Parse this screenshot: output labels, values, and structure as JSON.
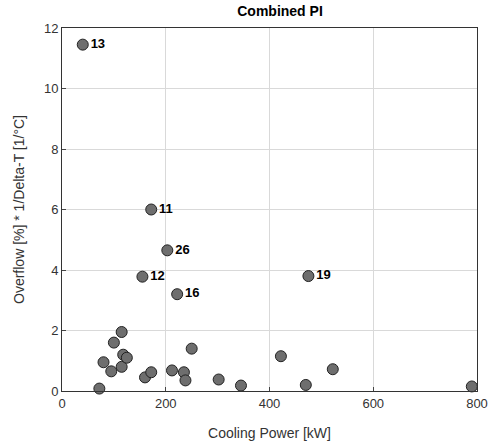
{
  "chart_data": {
    "type": "scatter",
    "title": "Combined PI",
    "x_label": "Cooling Power [kW]",
    "y_label": "Overflow [%] * 1/Delta-T [1/°C]",
    "x": [
      40,
      172,
      203,
      155,
      222,
      475,
      72,
      80,
      95,
      100,
      115,
      115,
      118,
      125,
      160,
      172,
      212,
      235,
      238,
      250,
      302,
      345,
      422,
      470,
      522,
      790
    ],
    "values": [
      11.45,
      6.0,
      4.65,
      3.78,
      3.2,
      3.8,
      0.08,
      0.95,
      0.65,
      1.6,
      1.95,
      0.8,
      1.2,
      1.1,
      0.45,
      0.62,
      0.68,
      0.62,
      0.35,
      1.4,
      0.38,
      0.18,
      1.15,
      0.2,
      0.72,
      0.15
    ],
    "point_labels": [
      "13",
      "11",
      "26",
      "12",
      "16",
      "19",
      null,
      null,
      null,
      null,
      null,
      null,
      null,
      null,
      null,
      null,
      null,
      null,
      null,
      null,
      null,
      null,
      null,
      null,
      null,
      null
    ],
    "color": "#6e6e6e",
    "marker": "circle",
    "xlim": [
      0,
      800
    ],
    "xticks": [
      0,
      200,
      400,
      600,
      800
    ],
    "ylim": [
      0,
      12
    ],
    "yticks": [
      0,
      2,
      4,
      6,
      8,
      10,
      12
    ],
    "grid": true
  }
}
